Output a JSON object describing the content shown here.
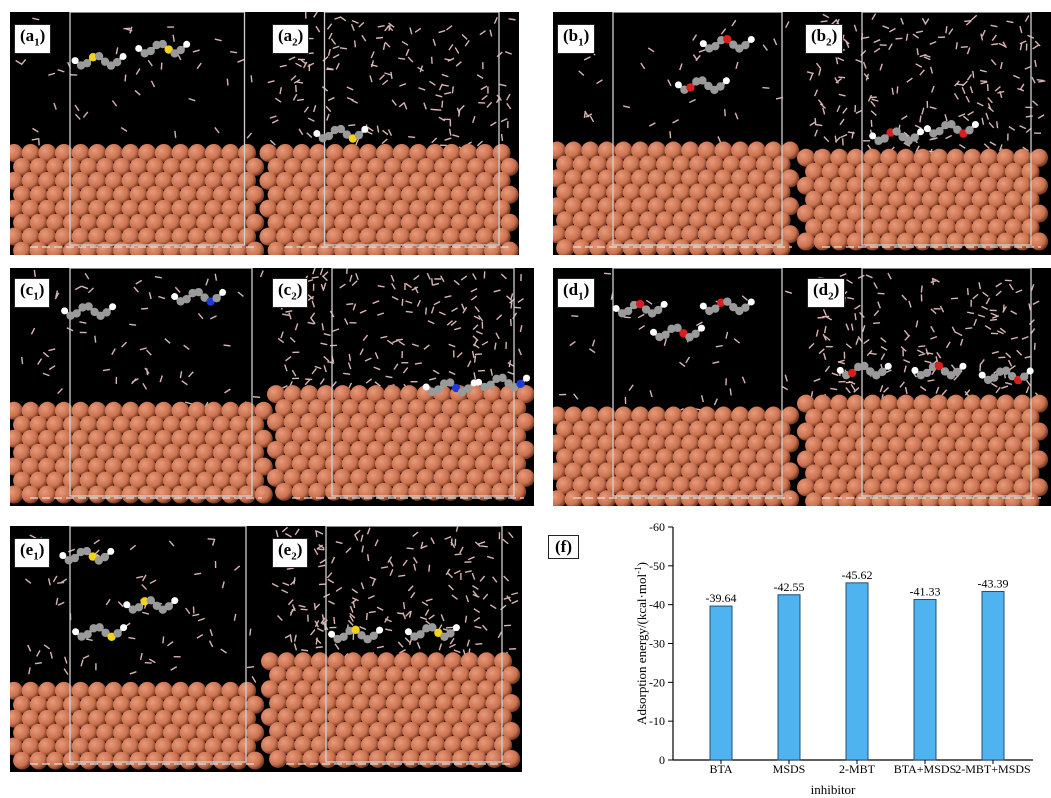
{
  "panels": [
    {
      "id": "a",
      "left_label": {
        "main": "(a",
        "sub": "1",
        "close": ")"
      },
      "right_label": {
        "main": "(a",
        "sub": "2",
        "close": ")"
      }
    },
    {
      "id": "b",
      "left_label": {
        "main": "(b",
        "sub": "1",
        "close": ")"
      },
      "right_label": {
        "main": "(b",
        "sub": "2",
        "close": ")"
      }
    },
    {
      "id": "c",
      "left_label": {
        "main": "(c",
        "sub": "1",
        "close": ")"
      },
      "right_label": {
        "main": "(c",
        "sub": "2",
        "close": ")"
      }
    },
    {
      "id": "d",
      "left_label": {
        "main": "(d",
        "sub": "1",
        "close": ")"
      },
      "right_label": {
        "main": "(d",
        "sub": "2",
        "close": ")"
      }
    },
    {
      "id": "e",
      "left_label": {
        "main": "(e",
        "sub": "1",
        "close": ")"
      },
      "right_label": {
        "main": "(e",
        "sub": "2",
        "close": ")"
      }
    }
  ],
  "colors": {
    "copper": "#c9714f",
    "copper_light": "#e89a7a",
    "copper_dark": "#7a3a22",
    "water": "#d9b4b4",
    "bar_fill": "#4fb3f0",
    "bar_stroke": "#1f4f7a"
  },
  "chart_label": "(f)",
  "chart_data": {
    "type": "bar",
    "categories": [
      "BTA",
      "MSDS",
      "2-MBT",
      "BTA+MSDS",
      "2-MBT+MSDS"
    ],
    "values": [
      -39.64,
      -42.55,
      -45.62,
      -41.33,
      -43.39
    ],
    "value_labels": [
      "-39.64",
      "-42.55",
      "-45.62",
      "-41.33",
      "-43.39"
    ],
    "ylabel": "Adsorption energy/(kcal·mol",
    "ylabel_sup": "-1",
    "ylabel_close": ")",
    "xlabel": "inhibitor",
    "ylim": [
      0,
      -60
    ],
    "yticks": [
      0,
      -10,
      -20,
      -30,
      -40,
      -50,
      -60
    ],
    "ytick_labels": [
      "0",
      "-10",
      "-20",
      "-30",
      "-40",
      "-50",
      "-60"
    ],
    "grid": false
  }
}
